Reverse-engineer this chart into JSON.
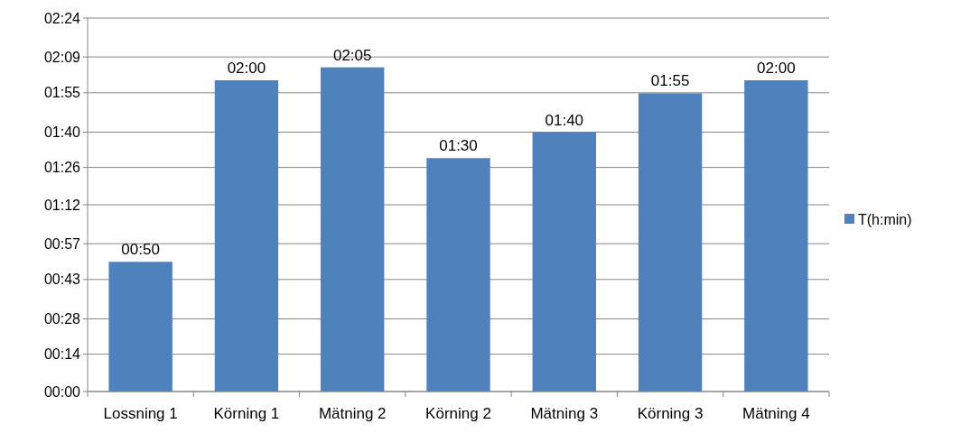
{
  "chart_data": {
    "type": "bar",
    "categories": [
      "Lossning 1",
      "Körning 1",
      "Mätning 2",
      "Körning 2",
      "Mätning 3",
      "Körning 3",
      "Mätning 4"
    ],
    "series": [
      {
        "name": "T(h:min)",
        "color": "#4f81bd",
        "values": [
          50,
          120,
          125,
          90,
          100,
          115,
          120
        ],
        "value_labels": [
          "00:50",
          "02:00",
          "02:05",
          "01:30",
          "01:40",
          "01:55",
          "02:00"
        ]
      }
    ],
    "ylim": [
      0,
      144
    ],
    "yticks": [
      {
        "value": 0,
        "label": "00:00"
      },
      {
        "value": 14.4,
        "label": "00:14"
      },
      {
        "value": 28,
        "label": "00:28"
      },
      {
        "value": 43.2,
        "label": "00:43"
      },
      {
        "value": 57,
        "label": "00:57"
      },
      {
        "value": 72,
        "label": "01:12"
      },
      {
        "value": 86.4,
        "label": "01:26"
      },
      {
        "value": 100,
        "label": "01:40"
      },
      {
        "value": 115.2,
        "label": "01:55"
      },
      {
        "value": 129,
        "label": "02:09"
      },
      {
        "value": 144,
        "label": "02:24"
      }
    ],
    "grid": "y",
    "legend": "right"
  }
}
